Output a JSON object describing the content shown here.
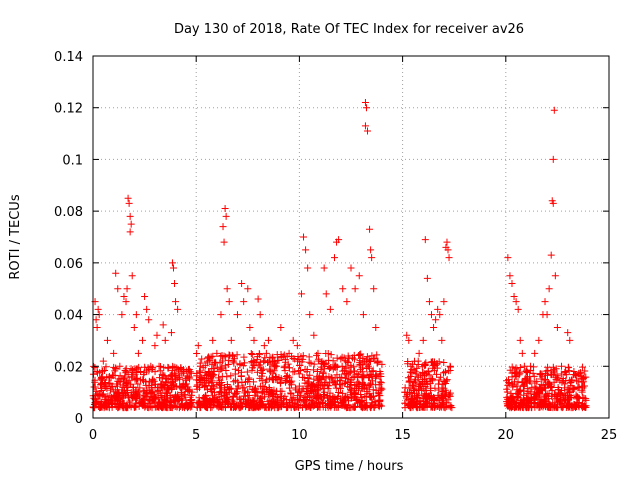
{
  "chart_data": {
    "type": "scatter",
    "title": "Day 130 of 2018, Rate Of TEC Index for receiver av26",
    "xlabel": "GPS time / hours",
    "ylabel": "ROTI / TECUs",
    "xlim": [
      0,
      25
    ],
    "ylim": [
      0,
      0.14
    ],
    "xticks": [
      0,
      5,
      10,
      15,
      20,
      25
    ],
    "yticks": [
      0,
      0.02,
      0.04,
      0.06,
      0.08,
      0.1,
      0.12,
      0.14
    ],
    "xtick_labels": [
      "0",
      "5",
      "10",
      "15",
      "20",
      "25"
    ],
    "ytick_labels": [
      "0",
      "0.02",
      "0.04",
      "0.06",
      "0.08",
      "0.1",
      "0.12",
      "0.14"
    ],
    "grid": true,
    "grid_style": "dotted",
    "marker": "plus",
    "series": [
      {
        "color": "#ff0000",
        "points": [
          [
            0.05,
            0.012
          ],
          [
            0.1,
            0.045
          ],
          [
            0.15,
            0.038
          ],
          [
            0.2,
            0.035
          ],
          [
            0.25,
            0.042
          ],
          [
            0.3,
            0.04
          ],
          [
            0.1,
            0.006
          ],
          [
            0.2,
            0.018
          ],
          [
            0.3,
            0.009
          ],
          [
            0.4,
            0.015
          ],
          [
            0.5,
            0.022
          ],
          [
            0.6,
            0.012
          ],
          [
            0.7,
            0.03
          ],
          [
            0.8,
            0.016
          ],
          [
            0.9,
            0.008
          ],
          [
            1.0,
            0.025
          ],
          [
            1.1,
            0.056
          ],
          [
            1.2,
            0.05
          ],
          [
            1.3,
            0.02
          ],
          [
            1.4,
            0.04
          ],
          [
            1.5,
            0.047
          ],
          [
            1.6,
            0.045
          ],
          [
            1.65,
            0.05
          ],
          [
            1.7,
            0.085
          ],
          [
            1.75,
            0.083
          ],
          [
            1.8,
            0.078
          ],
          [
            1.85,
            0.075
          ],
          [
            1.8,
            0.072
          ],
          [
            1.9,
            0.055
          ],
          [
            2.0,
            0.035
          ],
          [
            2.1,
            0.04
          ],
          [
            2.2,
            0.025
          ],
          [
            2.3,
            0.018
          ],
          [
            2.4,
            0.03
          ],
          [
            2.5,
            0.047
          ],
          [
            2.6,
            0.042
          ],
          [
            2.7,
            0.038
          ],
          [
            2.8,
            0.02
          ],
          [
            2.9,
            0.015
          ],
          [
            3.0,
            0.028
          ],
          [
            3.1,
            0.032
          ],
          [
            3.2,
            0.02
          ],
          [
            3.4,
            0.036
          ],
          [
            3.5,
            0.03
          ],
          [
            3.6,
            0.012
          ],
          [
            3.8,
            0.033
          ],
          [
            3.85,
            0.06
          ],
          [
            3.9,
            0.058
          ],
          [
            3.95,
            0.052
          ],
          [
            4.0,
            0.045
          ],
          [
            4.1,
            0.042
          ],
          [
            4.2,
            0.015
          ],
          [
            4.4,
            0.018
          ],
          [
            4.6,
            0.012
          ],
          [
            4.8,
            0.01
          ],
          [
            2.2,
            0.01
          ],
          [
            3.0,
            0.008
          ],
          [
            4.5,
            0.007
          ],
          [
            5.1,
            0.028
          ],
          [
            5.2,
            0.02
          ],
          [
            5.4,
            0.012
          ],
          [
            5.6,
            0.018
          ],
          [
            5.8,
            0.03
          ],
          [
            6.0,
            0.025
          ],
          [
            6.2,
            0.04
          ],
          [
            6.3,
            0.074
          ],
          [
            6.35,
            0.068
          ],
          [
            6.4,
            0.081
          ],
          [
            6.45,
            0.078
          ],
          [
            6.5,
            0.05
          ],
          [
            6.6,
            0.045
          ],
          [
            6.7,
            0.03
          ],
          [
            6.8,
            0.022
          ],
          [
            7.0,
            0.04
          ],
          [
            7.2,
            0.052
          ],
          [
            7.3,
            0.045
          ],
          [
            7.5,
            0.05
          ],
          [
            7.6,
            0.035
          ],
          [
            7.8,
            0.03
          ],
          [
            8.0,
            0.046
          ],
          [
            8.1,
            0.04
          ],
          [
            8.3,
            0.028
          ],
          [
            8.5,
            0.03
          ],
          [
            8.7,
            0.022
          ],
          [
            8.9,
            0.02
          ],
          [
            9.1,
            0.035
          ],
          [
            9.3,
            0.02
          ],
          [
            9.5,
            0.025
          ],
          [
            9.7,
            0.03
          ],
          [
            9.9,
            0.028
          ],
          [
            10.1,
            0.048
          ],
          [
            10.2,
            0.07
          ],
          [
            10.3,
            0.065
          ],
          [
            10.4,
            0.058
          ],
          [
            10.5,
            0.04
          ],
          [
            10.7,
            0.032
          ],
          [
            10.9,
            0.025
          ],
          [
            11.2,
            0.058
          ],
          [
            11.3,
            0.048
          ],
          [
            11.5,
            0.042
          ],
          [
            11.7,
            0.062
          ],
          [
            11.8,
            0.068
          ],
          [
            11.9,
            0.069
          ],
          [
            12.1,
            0.05
          ],
          [
            12.3,
            0.045
          ],
          [
            12.5,
            0.058
          ],
          [
            12.7,
            0.05
          ],
          [
            12.9,
            0.055
          ],
          [
            13.1,
            0.04
          ],
          [
            13.2,
            0.122
          ],
          [
            13.25,
            0.12
          ],
          [
            13.2,
            0.113
          ],
          [
            13.3,
            0.111
          ],
          [
            13.4,
            0.073
          ],
          [
            13.45,
            0.065
          ],
          [
            13.5,
            0.062
          ],
          [
            13.6,
            0.05
          ],
          [
            13.7,
            0.035
          ],
          [
            13.8,
            0.022
          ],
          [
            13.9,
            0.018
          ],
          [
            5.5,
            0.006
          ],
          [
            6.5,
            0.008
          ],
          [
            7.5,
            0.007
          ],
          [
            8.5,
            0.009
          ],
          [
            9.5,
            0.006
          ],
          [
            10.5,
            0.008
          ],
          [
            11.5,
            0.007
          ],
          [
            12.5,
            0.009
          ],
          [
            13.5,
            0.008
          ],
          [
            15.2,
            0.032
          ],
          [
            15.3,
            0.03
          ],
          [
            15.4,
            0.02
          ],
          [
            15.6,
            0.015
          ],
          [
            15.8,
            0.025
          ],
          [
            16.0,
            0.03
          ],
          [
            16.1,
            0.069
          ],
          [
            16.2,
            0.054
          ],
          [
            16.3,
            0.045
          ],
          [
            16.4,
            0.04
          ],
          [
            16.5,
            0.035
          ],
          [
            16.6,
            0.038
          ],
          [
            16.7,
            0.042
          ],
          [
            16.8,
            0.04
          ],
          [
            16.9,
            0.03
          ],
          [
            17.0,
            0.045
          ],
          [
            17.1,
            0.066
          ],
          [
            17.15,
            0.068
          ],
          [
            17.2,
            0.065
          ],
          [
            17.25,
            0.062
          ],
          [
            17.3,
            0.02
          ],
          [
            15.5,
            0.006
          ],
          [
            16.5,
            0.008
          ],
          [
            17.2,
            0.007
          ],
          [
            20.1,
            0.062
          ],
          [
            20.2,
            0.055
          ],
          [
            20.3,
            0.052
          ],
          [
            20.4,
            0.047
          ],
          [
            20.5,
            0.045
          ],
          [
            20.6,
            0.042
          ],
          [
            20.7,
            0.03
          ],
          [
            20.8,
            0.025
          ],
          [
            20.9,
            0.02
          ],
          [
            21.0,
            0.018
          ],
          [
            21.2,
            0.02
          ],
          [
            21.4,
            0.025
          ],
          [
            21.6,
            0.03
          ],
          [
            21.8,
            0.04
          ],
          [
            21.9,
            0.045
          ],
          [
            22.0,
            0.04
          ],
          [
            22.1,
            0.05
          ],
          [
            22.2,
            0.063
          ],
          [
            22.25,
            0.084
          ],
          [
            22.3,
            0.083
          ],
          [
            22.3,
            0.1
          ],
          [
            22.35,
            0.119
          ],
          [
            22.4,
            0.055
          ],
          [
            22.5,
            0.035
          ],
          [
            22.7,
            0.02
          ],
          [
            22.9,
            0.018
          ],
          [
            23.0,
            0.033
          ],
          [
            23.1,
            0.03
          ],
          [
            23.3,
            0.018
          ],
          [
            23.5,
            0.012
          ],
          [
            23.7,
            0.01
          ],
          [
            20.5,
            0.006
          ],
          [
            21.5,
            0.008
          ],
          [
            22.5,
            0.007
          ],
          [
            23.5,
            0.006
          ]
        ]
      }
    ],
    "dense_bands": [
      {
        "x_start": 0.0,
        "x_end": 4.8,
        "y_low": 0.004,
        "y_high": 0.02
      },
      {
        "x_start": 5.0,
        "x_end": 14.0,
        "y_low": 0.004,
        "y_high": 0.025
      },
      {
        "x_start": 15.1,
        "x_end": 17.4,
        "y_low": 0.004,
        "y_high": 0.022
      },
      {
        "x_start": 20.0,
        "x_end": 23.9,
        "y_low": 0.004,
        "y_high": 0.02
      }
    ]
  }
}
